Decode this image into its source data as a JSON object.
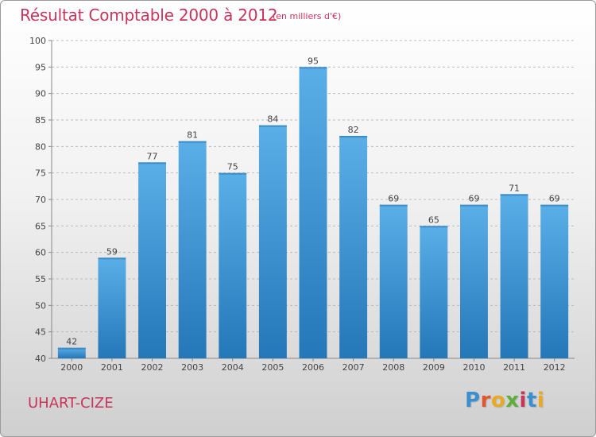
{
  "header": {
    "title": "Résultat Comptable 2000 à 2012",
    "subtitle": "(en milliers d'€)"
  },
  "footer": {
    "commune": "UHART-CIZE",
    "logo": [
      "P",
      "r",
      "o",
      "x",
      "i",
      "t",
      "i"
    ]
  },
  "colors": {
    "title": "#c8355a",
    "bar_top": "#5aafe8",
    "bar_bottom": "#2477b8",
    "grid": "#bbbbbb"
  },
  "chart_data": {
    "type": "bar",
    "title": "Résultat Comptable 2000 à 2012",
    "subtitle": "(en milliers d'€)",
    "categories": [
      "2000",
      "2001",
      "2002",
      "2003",
      "2004",
      "2005",
      "2006",
      "2007",
      "2008",
      "2009",
      "2010",
      "2011",
      "2012"
    ],
    "values": [
      42,
      59,
      77,
      81,
      75,
      84,
      95,
      82,
      69,
      65,
      69,
      71,
      69
    ],
    "ylim": [
      40,
      100
    ],
    "yticks": [
      40,
      45,
      50,
      55,
      60,
      65,
      70,
      75,
      80,
      85,
      90,
      95,
      100
    ],
    "grid": "horizontal dashed",
    "xlabel": "",
    "ylabel": ""
  }
}
